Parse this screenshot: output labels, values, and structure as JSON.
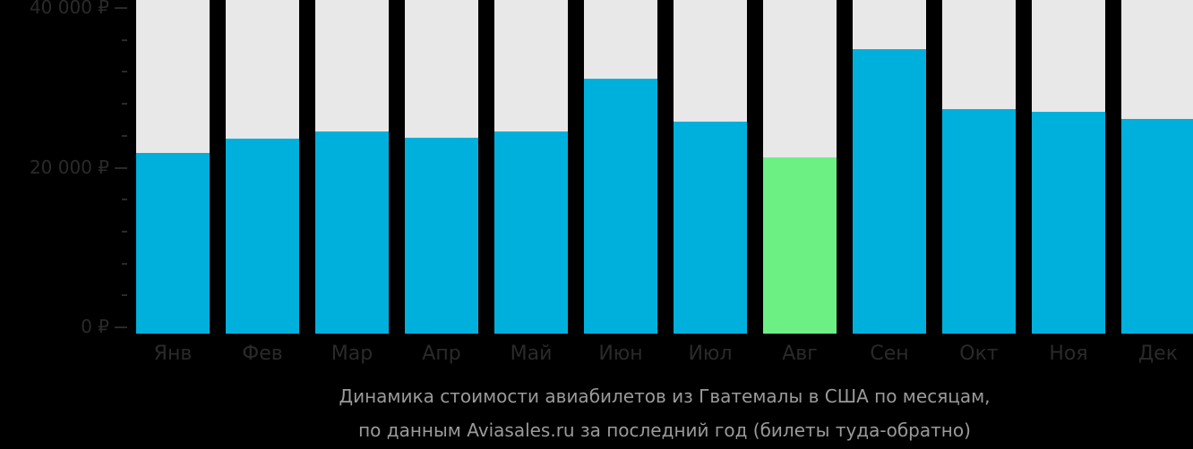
{
  "chart_data": {
    "type": "bar",
    "title": "Динамика стоимости авиабилетов из Гватемалы в США по месяцам, по данным Aviasales.ru за последний год (билеты туда-обратно)",
    "categories": [
      "Янв",
      "Фев",
      "Мар",
      "Апр",
      "Май",
      "Июн",
      "Июл",
      "Авг",
      "Сен",
      "Окт",
      "Ноя",
      "Дек"
    ],
    "values": [
      22100,
      23900,
      24800,
      24000,
      24800,
      31200,
      26000,
      21600,
      34900,
      27500,
      27200,
      26300
    ],
    "highlight_index": 7,
    "xlabel": "",
    "ylabel": "",
    "ylim": [
      0,
      40000
    ],
    "yticks": [
      "0 ₽",
      "20 000 ₽",
      "40 000 ₽"
    ],
    "grid": false,
    "legend": null
  },
  "caption": {
    "line1": "Динамика стоимости авиабилетов из Гватемалы в США по месяцам,",
    "line2": "по данным Aviasales.ru за последний год (билеты туда-обратно)"
  },
  "colors": {
    "bar": "#00b0dc",
    "highlight": "#6cf084",
    "bar_background": "#e8e8e8",
    "axis_text": "#2a2a2a",
    "caption_text": "#9a9a9a"
  }
}
